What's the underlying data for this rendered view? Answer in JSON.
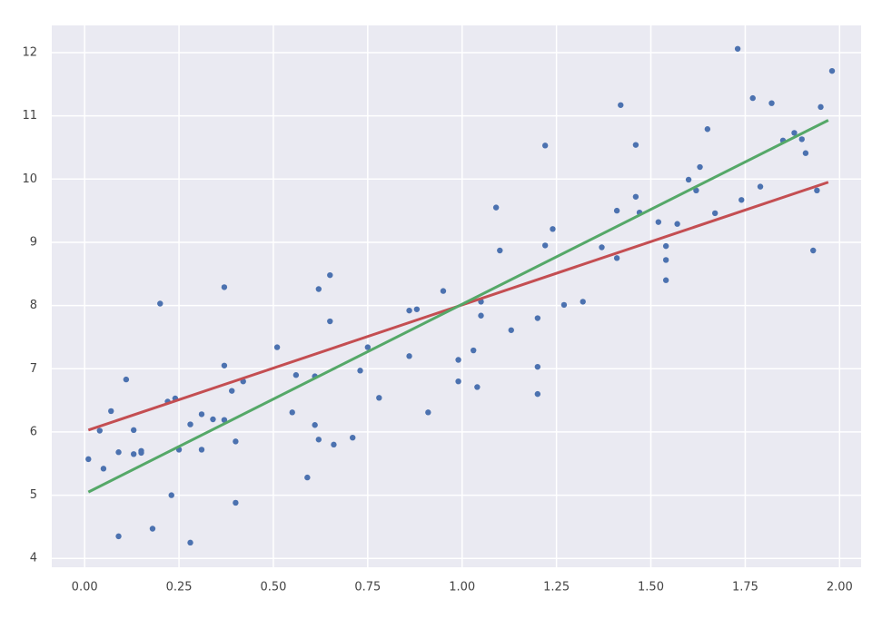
{
  "chart_data": {
    "type": "scatter",
    "xlim": [
      -0.087,
      2.057
    ],
    "ylim": [
      3.86,
      12.43
    ],
    "xticks": [
      {
        "value": 0,
        "label": "0.00"
      },
      {
        "value": 0.25,
        "label": "0.25"
      },
      {
        "value": 0.5,
        "label": "0.50"
      },
      {
        "value": 0.75,
        "label": "0.75"
      },
      {
        "value": 1,
        "label": "1.00"
      },
      {
        "value": 1.25,
        "label": "1.25"
      },
      {
        "value": 1.5,
        "label": "1.50"
      },
      {
        "value": 1.75,
        "label": "1.75"
      },
      {
        "value": 2,
        "label": "2.00"
      }
    ],
    "yticks": [
      4,
      5,
      6,
      7,
      8,
      9,
      10,
      11,
      12
    ],
    "grid": true,
    "series": [
      {
        "type": "scatter",
        "color": "#4c72b0",
        "x": [
          0.01,
          0.04,
          0.05,
          0.07,
          0.09,
          0.09,
          0.11,
          0.13,
          0.13,
          0.15,
          0.15,
          0.18,
          0.2,
          0.22,
          0.23,
          0.24,
          0.25,
          0.28,
          0.28,
          0.31,
          0.31,
          0.34,
          0.37,
          0.37,
          0.37,
          0.39,
          0.4,
          0.4,
          0.42,
          0.51,
          0.55,
          0.56,
          0.59,
          0.61,
          0.61,
          0.62,
          0.62,
          0.65,
          0.65,
          0.66,
          0.71,
          0.73,
          0.75,
          0.78,
          0.86,
          0.86,
          0.88,
          0.91,
          0.95,
          0.99,
          0.99,
          1.03,
          1.04,
          1.05,
          1.05,
          1.09,
          1.1,
          1.13,
          1.2,
          1.2,
          1.2,
          1.22,
          1.22,
          1.24,
          1.27,
          1.32,
          1.37,
          1.41,
          1.41,
          1.42,
          1.46,
          1.46,
          1.47,
          1.52,
          1.54,
          1.54,
          1.54,
          1.57,
          1.6,
          1.62,
          1.63,
          1.65,
          1.67,
          1.73,
          1.74,
          1.77,
          1.79,
          1.82,
          1.85,
          1.88,
          1.9,
          1.91,
          1.93,
          1.94,
          1.95,
          1.98
        ],
        "values": [
          5.57,
          6.02,
          5.42,
          6.33,
          4.35,
          5.68,
          6.83,
          6.03,
          5.65,
          5.7,
          5.67,
          4.47,
          8.03,
          6.48,
          5.0,
          6.53,
          5.72,
          6.12,
          4.25,
          6.28,
          5.72,
          6.2,
          7.05,
          6.19,
          8.29,
          6.65,
          5.85,
          4.88,
          6.8,
          7.34,
          6.31,
          6.9,
          5.28,
          6.88,
          6.11,
          8.26,
          5.88,
          8.48,
          7.75,
          5.8,
          5.91,
          6.97,
          7.34,
          6.54,
          7.92,
          7.2,
          7.94,
          6.31,
          8.23,
          7.14,
          6.8,
          7.29,
          6.71,
          7.84,
          8.06,
          9.55,
          8.87,
          7.61,
          7.8,
          7.03,
          6.6,
          10.53,
          8.95,
          9.21,
          8.01,
          8.06,
          8.92,
          9.5,
          8.75,
          11.17,
          10.54,
          9.72,
          9.47,
          9.32,
          8.94,
          8.72,
          8.4,
          9.29,
          9.99,
          9.82,
          10.19,
          10.79,
          9.46,
          12.06,
          9.67,
          11.28,
          9.88,
          11.2,
          10.61,
          10.73,
          10.63,
          10.41,
          8.87,
          9.82,
          11.14,
          11.71
        ]
      },
      {
        "type": "line",
        "color": "#c44e52",
        "x": [
          0.01,
          1.97
        ],
        "values": [
          6.03,
          9.95
        ]
      },
      {
        "type": "line",
        "color": "#55a868",
        "x": [
          0.01,
          1.97
        ],
        "values": [
          5.05,
          10.93
        ]
      }
    ]
  }
}
